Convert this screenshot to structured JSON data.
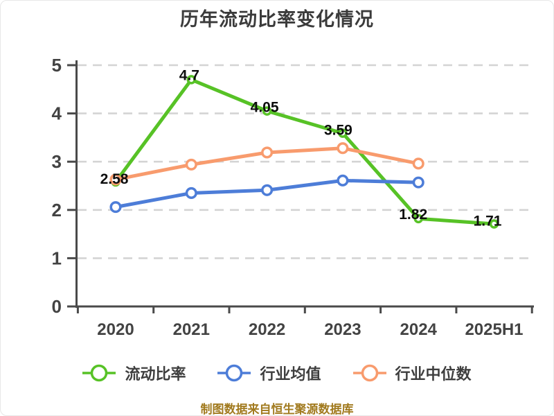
{
  "title": "历年流动比率变化情况",
  "footer": "制图数据来自恒生聚源数据库",
  "theme": {
    "background": "#ffffff",
    "grid_color": "#d4d4d4",
    "axis_color": "#4a4a4a",
    "tick_label_color": "#434343",
    "data_label_color": "#0d0d0d",
    "title_color": "#3b3b3b",
    "legend_text_color": "#3e3e3e",
    "footer_color": "#a17a1e"
  },
  "chart_data": {
    "type": "line",
    "title": "历年流动比率变化情况",
    "categories": [
      "2020",
      "2021",
      "2022",
      "2023",
      "2024",
      "2025H1"
    ],
    "series": [
      {
        "name": "流动比率",
        "color": "#57c226",
        "values": [
          2.58,
          4.7,
          4.05,
          3.59,
          1.82,
          1.71
        ],
        "labels": [
          "2.58",
          "4.7",
          "4.05",
          "3.59",
          "1.82",
          "1.71"
        ]
      },
      {
        "name": "行业均值",
        "color": "#4d7dd8",
        "values": [
          2.06,
          2.35,
          2.41,
          2.61,
          2.57,
          null
        ],
        "labels": []
      },
      {
        "name": "行业中位数",
        "color": "#f89b6d",
        "values": [
          2.63,
          2.94,
          3.19,
          3.28,
          2.96,
          null
        ],
        "labels": []
      }
    ],
    "xlabel": "",
    "ylabel": "",
    "ylim": [
      0,
      5
    ],
    "yticks": [
      0,
      1,
      2,
      3,
      4,
      5
    ],
    "grid": "horizontal-dashed",
    "legend_position": "bottom",
    "marker": "white-filled-circle"
  }
}
